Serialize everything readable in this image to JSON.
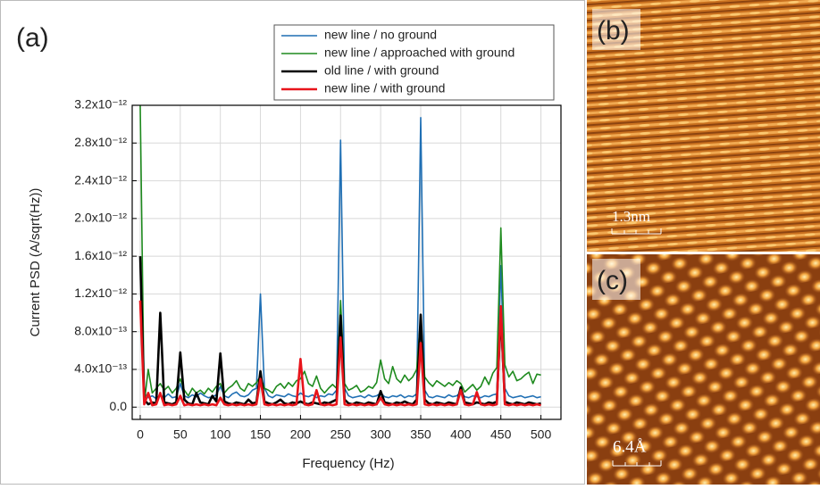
{
  "chart_data": {
    "type": "line",
    "panel_label": "(a)",
    "x_label": "Frequency (Hz)",
    "y_label": "Current PSD (A/sqrt(Hz))",
    "x": [
      0,
      5,
      10,
      15,
      20,
      25,
      30,
      35,
      40,
      45,
      50,
      55,
      60,
      65,
      70,
      75,
      80,
      85,
      90,
      95,
      100,
      105,
      110,
      115,
      120,
      125,
      130,
      135,
      140,
      145,
      150,
      155,
      160,
      165,
      170,
      175,
      180,
      185,
      190,
      195,
      200,
      205,
      210,
      215,
      220,
      225,
      230,
      235,
      240,
      245,
      250,
      255,
      260,
      265,
      270,
      275,
      280,
      285,
      290,
      295,
      300,
      305,
      310,
      315,
      320,
      325,
      330,
      335,
      340,
      345,
      350,
      355,
      360,
      365,
      370,
      375,
      380,
      385,
      390,
      395,
      400,
      405,
      410,
      415,
      420,
      425,
      430,
      435,
      440,
      445,
      450,
      455,
      460,
      465,
      470,
      475,
      480,
      485,
      490,
      495,
      500
    ],
    "series": [
      {
        "name": "new line / no ground",
        "color": "#1f6fb4",
        "values": [
          1.1e-12,
          1.5e-13,
          1e-13,
          1.2e-13,
          9e-14,
          1.3e-13,
          1e-13,
          1.4e-13,
          1e-13,
          1.1e-13,
          2.5e-13,
          1.2e-13,
          1e-13,
          1.3e-13,
          1.1e-13,
          1.5e-13,
          1.2e-13,
          1e-13,
          1.1e-13,
          1.3e-13,
          2.2e-13,
          1.2e-13,
          1e-13,
          1.4e-13,
          1.6e-13,
          1.2e-13,
          1.1e-13,
          1.3e-13,
          1.8e-13,
          2e-13,
          1.2e-12,
          2e-13,
          1.2e-13,
          1e-13,
          1.3e-13,
          1.2e-13,
          1.1e-13,
          1.4e-13,
          1.2e-13,
          1.1e-13,
          1.5e-13,
          1.2e-13,
          1.1e-13,
          1.3e-13,
          1e-13,
          1.2e-13,
          1.1e-13,
          1.4e-13,
          1.3e-13,
          1.8e-13,
          2.83e-12,
          2e-13,
          1.2e-13,
          1e-13,
          1.1e-13,
          1.2e-13,
          1e-13,
          1.3e-13,
          1.1e-13,
          1.2e-13,
          1.5e-13,
          1.1e-13,
          1e-13,
          1.2e-13,
          1.1e-13,
          1.3e-13,
          1e-13,
          1.2e-13,
          1.1e-13,
          1.4e-13,
          3.07e-12,
          1.8e-13,
          1.1e-13,
          1e-13,
          1.2e-13,
          1.1e-13,
          1e-13,
          1.3e-13,
          1.1e-13,
          1.2e-13,
          1.6e-13,
          1.1e-13,
          1e-13,
          1.2e-13,
          1.1e-13,
          1e-13,
          1.2e-13,
          1.1e-13,
          1.3e-13,
          1.4e-13,
          1.5e-12,
          2e-13,
          1.2e-13,
          1e-13,
          1.1e-13,
          1.2e-13,
          1e-13,
          1.1e-13,
          1.2e-13,
          1e-13,
          1.1e-13
        ]
      },
      {
        "name": "new line / approached with ground",
        "color": "#1e8a1e",
        "values": [
          3.2e-12,
          4e-14,
          4e-13,
          1.5e-13,
          2e-13,
          2.5e-13,
          1.8e-13,
          2.2e-13,
          1.5e-13,
          2e-13,
          3e-13,
          1.8e-13,
          1.2e-13,
          2e-13,
          1.5e-13,
          1.8e-13,
          1.4e-13,
          2e-13,
          1.6e-13,
          2.2e-13,
          2.5e-13,
          1.5e-13,
          2e-13,
          2.3e-13,
          2.8e-13,
          2e-13,
          1.7e-13,
          2.5e-13,
          2.2e-13,
          2.6e-13,
          3.3e-13,
          2e-13,
          1.8e-13,
          1.5e-13,
          2.2e-13,
          2.5e-13,
          2e-13,
          2.6e-13,
          2.2e-13,
          2.8e-13,
          3e-13,
          3.8e-13,
          2.5e-13,
          2.2e-13,
          3.3e-13,
          2e-13,
          1.5e-13,
          2e-13,
          2.4e-13,
          2e-13,
          1.13e-12,
          2.5e-13,
          1.8e-13,
          2e-13,
          2.3e-13,
          1.6e-13,
          1.8e-13,
          2.2e-13,
          2e-13,
          2.6e-13,
          5e-13,
          3e-13,
          2.5e-13,
          4.3e-13,
          3e-13,
          2.6e-13,
          3.4e-13,
          2.8e-13,
          3.2e-13,
          4e-13,
          9.5e-13,
          3.2e-13,
          2.6e-13,
          2.2e-13,
          2.8e-13,
          2.5e-13,
          2.2e-13,
          2.6e-13,
          2.3e-13,
          2.8e-13,
          2.5e-13,
          1.6e-13,
          2e-13,
          2.4e-13,
          1.8e-13,
          2.2e-13,
          3.2e-13,
          2.4e-13,
          3.6e-13,
          4.2e-13,
          1.9e-12,
          4.5e-13,
          3.2e-13,
          3.8e-13,
          2.8e-13,
          3e-13,
          3.4e-13,
          3.7e-13,
          2.5e-13,
          3.5e-13,
          3.4e-13
        ]
      },
      {
        "name": "old line / with ground",
        "color": "#000000",
        "values": [
          1.6e-12,
          8e-14,
          3e-14,
          5e-14,
          4e-14,
          1e-12,
          5e-14,
          4e-14,
          3e-14,
          5e-14,
          5.8e-13,
          8e-14,
          4e-14,
          3e-14,
          1.5e-13,
          5e-14,
          4e-14,
          3e-14,
          1.2e-13,
          6e-14,
          5.7e-13,
          6e-14,
          4e-14,
          3e-14,
          5e-14,
          4e-14,
          3e-14,
          8e-14,
          4e-14,
          5e-14,
          3.8e-13,
          6e-14,
          4e-14,
          3e-14,
          5e-14,
          8e-14,
          4e-14,
          3e-14,
          5e-14,
          4e-14,
          6e-14,
          4e-14,
          3e-14,
          5e-14,
          4e-14,
          3e-14,
          5e-14,
          4e-14,
          6e-14,
          8e-14,
          9.7e-13,
          8e-14,
          4e-14,
          3e-14,
          5e-14,
          4e-14,
          3e-14,
          5e-14,
          4e-14,
          3e-14,
          1.7e-13,
          5e-14,
          4e-14,
          3e-14,
          5e-14,
          4e-14,
          6e-14,
          4e-14,
          3e-14,
          8e-14,
          9.8e-13,
          8e-14,
          4e-14,
          3e-14,
          5e-14,
          4e-14,
          3e-14,
          5e-14,
          4e-14,
          3e-14,
          2.1e-13,
          5e-14,
          4e-14,
          3e-14,
          5e-14,
          4e-14,
          3e-14,
          5e-14,
          4e-14,
          6e-14,
          1e-12,
          6e-14,
          4e-14,
          3e-14,
          5e-14,
          4e-14,
          3e-14,
          5e-14,
          4e-14,
          3e-14,
          4e-14
        ]
      },
      {
        "name": "new line / with ground",
        "color": "#e8141b",
        "values": [
          1.13e-12,
          3e-14,
          1.5e-13,
          2e-14,
          3e-14,
          1.5e-13,
          2e-14,
          3e-14,
          2e-14,
          3e-14,
          1.2e-13,
          2e-14,
          3e-14,
          2e-14,
          3e-14,
          2e-14,
          3e-14,
          2e-14,
          3e-14,
          2e-14,
          1e-13,
          3e-14,
          2e-14,
          3e-14,
          2e-14,
          3e-14,
          2e-14,
          3e-14,
          2e-14,
          3e-14,
          3e-13,
          3e-14,
          2e-14,
          3e-14,
          2e-14,
          3e-14,
          2e-14,
          3e-14,
          2e-14,
          3e-14,
          5.1e-13,
          3e-14,
          2e-14,
          3e-14,
          1.8e-13,
          3e-14,
          2e-14,
          3e-14,
          2e-14,
          3e-14,
          7.4e-13,
          3e-14,
          2e-14,
          3e-14,
          2e-14,
          3e-14,
          2e-14,
          3e-14,
          2e-14,
          3e-14,
          1e-13,
          3e-14,
          2e-14,
          3e-14,
          2e-14,
          3e-14,
          2e-14,
          3e-14,
          2e-14,
          3e-14,
          6.8e-13,
          3e-14,
          2e-14,
          3e-14,
          2e-14,
          3e-14,
          2e-14,
          3e-14,
          2e-14,
          3e-14,
          1.8e-13,
          3e-14,
          2e-14,
          3e-14,
          1.6e-13,
          3e-14,
          2e-14,
          3e-14,
          2e-14,
          3e-14,
          1.07e-12,
          3e-14,
          2e-14,
          3e-14,
          2e-14,
          3e-14,
          2e-14,
          3e-14,
          2e-14,
          3e-14,
          2e-14
        ]
      }
    ],
    "xlim": [
      -10,
      525
    ],
    "ylim": [
      -1.3e-13,
      3.2e-12
    ],
    "xticks": [
      0,
      50,
      100,
      150,
      200,
      250,
      300,
      350,
      400,
      450,
      500
    ],
    "yticks": [
      {
        "value": 0,
        "label": "0.0"
      },
      {
        "value": 4e-13,
        "label": "4.0x10⁻¹³"
      },
      {
        "value": 8e-13,
        "label": "8.0x10⁻¹³"
      },
      {
        "value": 1.2e-12,
        "label": "1.2x10⁻¹²"
      },
      {
        "value": 1.6e-12,
        "label": "1.6x10⁻¹²"
      },
      {
        "value": 2e-12,
        "label": "2.0x10⁻¹²"
      },
      {
        "value": 2.4e-12,
        "label": "2.4x10⁻¹²"
      },
      {
        "value": 2.8e-12,
        "label": "2.8x10⁻¹²"
      },
      {
        "value": 3.2e-12,
        "label": "3.2x10⁻¹²"
      }
    ],
    "grid": true,
    "legend": "top-right"
  },
  "images": [
    {
      "label": "(b)",
      "scale": "1.3nm"
    },
    {
      "label": "(c)",
      "scale": "6.4Å"
    }
  ]
}
